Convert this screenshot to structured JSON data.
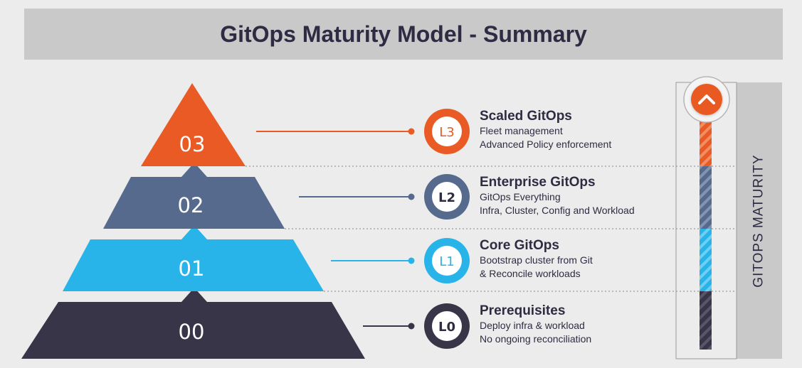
{
  "title": "GitOps Maturity Model - Summary",
  "axis_label": "GITOPS MATURITY",
  "colors": {
    "banner": "#c9c9c9",
    "background": "#ececec",
    "text": "#2f2b42",
    "l3": "#e95a24",
    "l2": "#566a8e",
    "l1": "#28b4e8",
    "l0": "#393549"
  },
  "tiers": [
    {
      "number": "00",
      "level": "L0",
      "title": "Prerequisites",
      "lines": [
        "Deploy infra & workload",
        "No ongoing reconciliation"
      ],
      "color": "#393549"
    },
    {
      "number": "01",
      "level": "L1",
      "title": "Core GitOps",
      "lines": [
        "Bootstrap cluster from Git",
        "& Reconcile workloads"
      ],
      "color": "#28b4e8"
    },
    {
      "number": "02",
      "level": "L2",
      "title": "Enterprise GitOps",
      "lines": [
        "GitOps Everything",
        "Infra, Cluster, Config and Workload"
      ],
      "color": "#566a8e"
    },
    {
      "number": "03",
      "level": "L3",
      "title": "Scaled GitOps",
      "lines": [
        "Fleet management",
        "Advanced Policy enforcement"
      ],
      "color": "#e95a24"
    }
  ],
  "icons": {
    "top_badge": "chevron-up-icon"
  }
}
